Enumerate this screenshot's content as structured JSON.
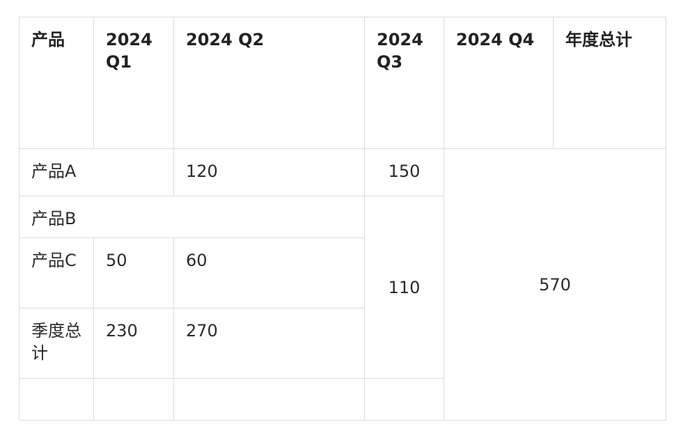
{
  "table": {
    "headers": [
      "产品",
      "2024 Q1",
      "2024 Q2",
      "2024 Q3",
      "2024 Q4",
      "年度总计"
    ],
    "rows": [
      {
        "label": "产品A",
        "q2": "120",
        "q3": "150",
        "total": "570"
      },
      {
        "label": "产品B"
      },
      {
        "label": "产品C",
        "q1": "50",
        "q2": "60",
        "q3": "110"
      },
      {
        "label": "季度总计",
        "q1": "230",
        "q2": "270"
      }
    ]
  }
}
